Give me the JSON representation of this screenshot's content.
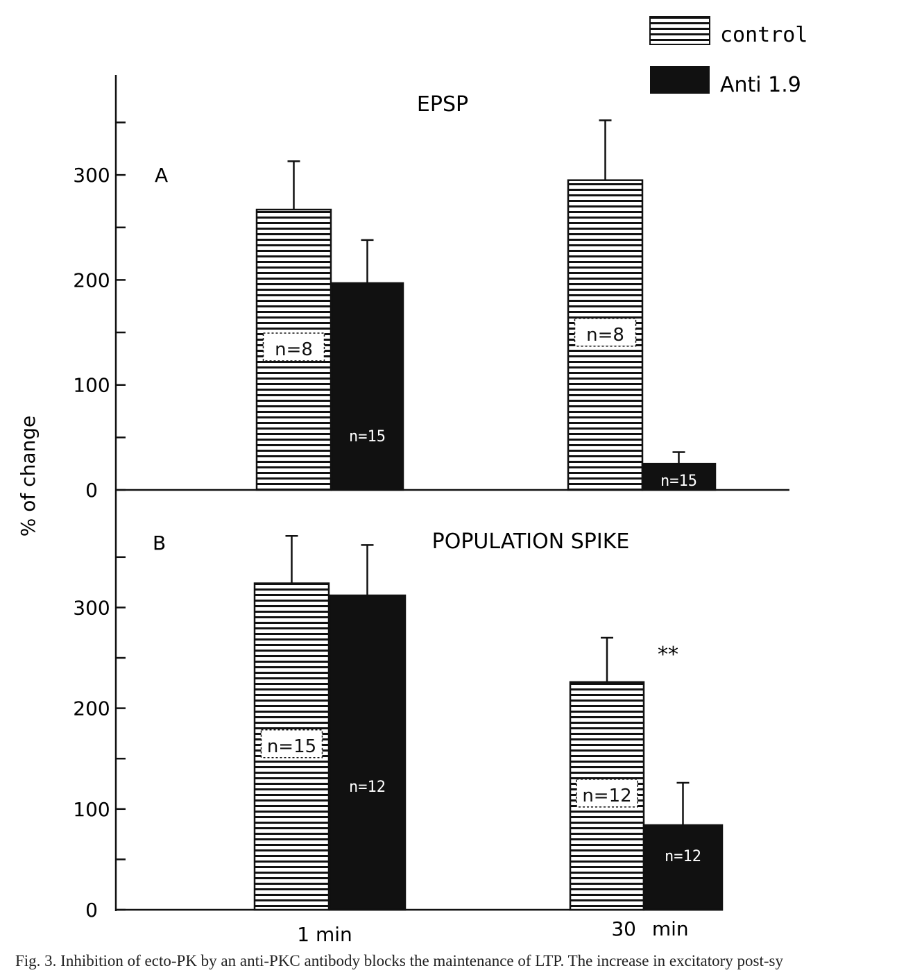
{
  "legend": {
    "position": "top-right",
    "items": [
      {
        "label": "control",
        "pattern": "hatch"
      },
      {
        "label": "Anti 1.9",
        "pattern": "solid"
      }
    ]
  },
  "ylabel": "% of change",
  "caption": "Fig. 3. Inhibition of ecto-PK by an anti-PKC antibody blocks the maintenance of LTP. The increase in excitatory post-sy",
  "colors": {
    "ink": "#111111",
    "paper": "#ffffff"
  },
  "chart_data": [
    {
      "type": "bar",
      "panel": "A",
      "title": "EPSP",
      "categories": [
        "1 min",
        "30 min"
      ],
      "ylim": [
        0,
        350
      ],
      "yticks": [
        0,
        100,
        200,
        300
      ],
      "series": [
        {
          "name": "control",
          "values": [
            267,
            295
          ],
          "errors": [
            46,
            57
          ],
          "n_labels": [
            "n=8",
            "n=8"
          ]
        },
        {
          "name": "Anti 1.9",
          "values": [
            197,
            25
          ],
          "errors": [
            41,
            11
          ],
          "n_labels": [
            "n=15",
            "n=15"
          ]
        }
      ]
    },
    {
      "type": "bar",
      "panel": "B",
      "title": "POPULATION SPIKE",
      "categories": [
        "1 min",
        "30 min"
      ],
      "ylim": [
        0,
        350
      ],
      "yticks": [
        0,
        100,
        200,
        300
      ],
      "annotation": "**",
      "series": [
        {
          "name": "control",
          "values": [
            324,
            226
          ],
          "errors": [
            47,
            44
          ],
          "n_labels": [
            "n=15",
            "n=12"
          ]
        },
        {
          "name": "Anti 1.9",
          "values": [
            312,
            84
          ],
          "errors": [
            50,
            42
          ],
          "n_labels": [
            "n=12",
            "n=12"
          ]
        }
      ]
    }
  ]
}
